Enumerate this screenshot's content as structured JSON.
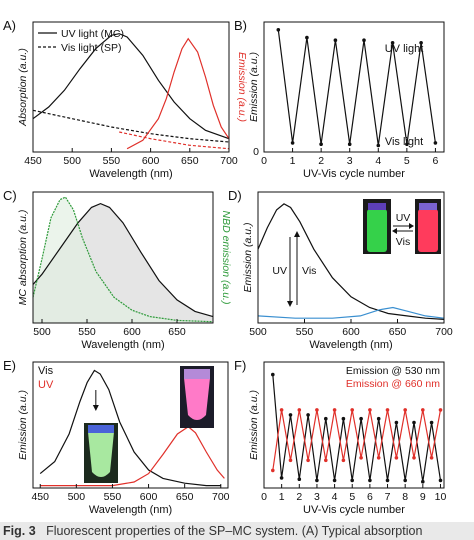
{
  "caption": {
    "label": "Fig. 3",
    "text": "Fluorescent properties of the SP–MC system. (A) Typical absorption"
  },
  "colors": {
    "black": "#111111",
    "red": "#e0302a",
    "green": "#2e9a3a",
    "blue": "#3a8fd0",
    "fill": "#e8ece8"
  },
  "chart_data": [
    {
      "panel": "A)",
      "type": "line",
      "xlabel": "Wavelength (nm)",
      "ylabel": "Absorption (a.u.)",
      "ylabel2": "Emission (a.u.)",
      "xlim": [
        450,
        700
      ],
      "xticks": [
        450,
        500,
        550,
        600,
        650,
        700
      ],
      "legend": [
        "UV light (MC)",
        "Vis light (SP)"
      ],
      "series": [
        {
          "name": "UV light (MC)",
          "style": "solid",
          "color": "black",
          "x": [
            450,
            470,
            490,
            510,
            530,
            550,
            560,
            570,
            590,
            610,
            630,
            650,
            670,
            700
          ],
          "y": [
            0.2,
            0.27,
            0.37,
            0.5,
            0.62,
            0.7,
            0.71,
            0.69,
            0.58,
            0.43,
            0.3,
            0.2,
            0.13,
            0.08
          ]
        },
        {
          "name": "Vis light (SP)",
          "style": "dashed",
          "color": "black",
          "x": [
            450,
            500,
            550,
            600,
            650,
            700
          ],
          "y": [
            0.25,
            0.2,
            0.15,
            0.11,
            0.08,
            0.06
          ]
        },
        {
          "name": "Emission",
          "style": "solid",
          "color": "red",
          "x": [
            570,
            590,
            610,
            620,
            630,
            640,
            648,
            660,
            670,
            680,
            690,
            700
          ],
          "y": [
            0.02,
            0.07,
            0.2,
            0.32,
            0.48,
            0.62,
            0.68,
            0.6,
            0.45,
            0.28,
            0.15,
            0.08
          ]
        },
        {
          "name": "Emission (Vis)",
          "style": "dashed",
          "color": "red",
          "x": [
            560,
            600,
            650,
            700
          ],
          "y": [
            0.12,
            0.08,
            0.04,
            0.02
          ]
        }
      ]
    },
    {
      "panel": "B)",
      "type": "line",
      "xlabel": "UV-Vis cycle number",
      "ylabel": "Emission (a.u.)",
      "xlim": [
        0,
        6.3
      ],
      "xticks": [
        0,
        1,
        2,
        3,
        4,
        5,
        6
      ],
      "ylim": [
        0,
        1
      ],
      "annotations": [
        "UV light",
        "Vis light"
      ],
      "series": [
        {
          "name": "cycle",
          "color": "black",
          "x": [
            0.5,
            1,
            1.5,
            2,
            2.5,
            3,
            3.5,
            4,
            4.5,
            5,
            5.5,
            6
          ],
          "y": [
            0.94,
            0.07,
            0.88,
            0.06,
            0.86,
            0.06,
            0.86,
            0.05,
            0.84,
            0.06,
            0.84,
            0.07
          ]
        }
      ]
    },
    {
      "panel": "C)",
      "type": "area",
      "xlabel": "Wavelength (nm)",
      "ylabel": "MC absorption (a.u.)",
      "ylabel2": "NBD emission (a.u.)",
      "xlim": [
        490,
        690
      ],
      "xticks": [
        500,
        550,
        600,
        650
      ],
      "series": [
        {
          "name": "MC absorption",
          "color": "black",
          "x": [
            490,
            500,
            520,
            540,
            555,
            565,
            575,
            590,
            610,
            630,
            650,
            670,
            690
          ],
          "y": [
            0.3,
            0.38,
            0.58,
            0.78,
            0.9,
            0.93,
            0.9,
            0.78,
            0.55,
            0.33,
            0.18,
            0.09,
            0.05
          ]
        },
        {
          "name": "NBD emission",
          "color": "green",
          "x": [
            490,
            500,
            510,
            520,
            526,
            535,
            545,
            560,
            580,
            600,
            620,
            650,
            690
          ],
          "y": [
            0.2,
            0.5,
            0.82,
            0.96,
            0.98,
            0.88,
            0.66,
            0.4,
            0.2,
            0.1,
            0.05,
            0.02,
            0.01
          ]
        }
      ]
    },
    {
      "panel": "D)",
      "type": "line",
      "xlabel": "Wavelength (nm)",
      "ylabel": "Emission (a.u.)",
      "xlim": [
        500,
        700
      ],
      "xticks": [
        500,
        550,
        600,
        650,
        700
      ],
      "annotations": [
        "UV",
        "Vis"
      ],
      "inset_labels": [
        "UV",
        "Vis"
      ],
      "series": [
        {
          "name": "UV",
          "color": "black",
          "x": [
            500,
            510,
            520,
            528,
            535,
            545,
            560,
            580,
            600,
            620,
            640,
            660,
            680,
            700
          ],
          "y": [
            0.62,
            0.8,
            0.95,
            1.0,
            0.97,
            0.85,
            0.62,
            0.38,
            0.22,
            0.13,
            0.08,
            0.06,
            0.04,
            0.03
          ]
        },
        {
          "name": "Vis",
          "color": "blue",
          "x": [
            500,
            540,
            580,
            610,
            630,
            645,
            660,
            680,
            700
          ],
          "y": [
            0.06,
            0.04,
            0.04,
            0.06,
            0.11,
            0.13,
            0.1,
            0.06,
            0.04
          ]
        }
      ]
    },
    {
      "panel": "E)",
      "type": "line",
      "xlabel": "Wavelength (nm)",
      "ylabel": "Emission (a.u.)",
      "xlim": [
        440,
        710
      ],
      "xticks": [
        450,
        500,
        550,
        600,
        650,
        700
      ],
      "legend": [
        "Vis",
        "UV"
      ],
      "series": [
        {
          "name": "Vis",
          "color": "black",
          "x": [
            450,
            470,
            490,
            505,
            515,
            525,
            533,
            545,
            560,
            580,
            600,
            620,
            650,
            680,
            700
          ],
          "y": [
            0.12,
            0.22,
            0.45,
            0.72,
            0.88,
            0.98,
            0.95,
            0.82,
            0.55,
            0.3,
            0.15,
            0.08,
            0.04,
            0.02,
            0.02
          ]
        },
        {
          "name": "UV",
          "color": "red",
          "x": [
            450,
            550,
            580,
            600,
            620,
            640,
            655,
            665,
            680,
            695,
            705
          ],
          "y": [
            0.02,
            0.02,
            0.05,
            0.12,
            0.28,
            0.45,
            0.51,
            0.46,
            0.3,
            0.15,
            0.08
          ]
        }
      ]
    },
    {
      "panel": "F)",
      "type": "line",
      "xlabel": "UV-Vis cycle number",
      "ylabel": "Emission (a.u.)",
      "xlim": [
        0,
        10.2
      ],
      "xticks": [
        0,
        1,
        2,
        3,
        4,
        5,
        6,
        7,
        8,
        9,
        10
      ],
      "ylim": [
        0,
        1
      ],
      "legend": [
        "Emission @ 530 nm",
        "Emission @ 660 nm"
      ],
      "series": [
        {
          "name": "Emission @ 530 nm",
          "color": "black",
          "x": [
            0.5,
            1,
            1.5,
            2,
            2.5,
            3,
            3.5,
            4,
            4.5,
            5,
            5.5,
            6,
            6.5,
            7,
            7.5,
            8,
            8.5,
            9,
            9.5,
            10
          ],
          "y": [
            0.9,
            0.08,
            0.58,
            0.07,
            0.58,
            0.06,
            0.55,
            0.06,
            0.55,
            0.06,
            0.55,
            0.06,
            0.55,
            0.06,
            0.52,
            0.06,
            0.52,
            0.05,
            0.52,
            0.06
          ]
        },
        {
          "name": "Emission @ 660 nm",
          "color": "red",
          "x": [
            0.5,
            1,
            1.5,
            2,
            2.5,
            3,
            3.5,
            4,
            4.5,
            5,
            5.5,
            6,
            6.5,
            7,
            7.5,
            8,
            8.5,
            9,
            9.5,
            10
          ],
          "y": [
            0.14,
            0.62,
            0.22,
            0.62,
            0.22,
            0.62,
            0.22,
            0.62,
            0.22,
            0.62,
            0.24,
            0.62,
            0.24,
            0.62,
            0.24,
            0.62,
            0.24,
            0.62,
            0.24,
            0.62
          ]
        }
      ]
    }
  ]
}
